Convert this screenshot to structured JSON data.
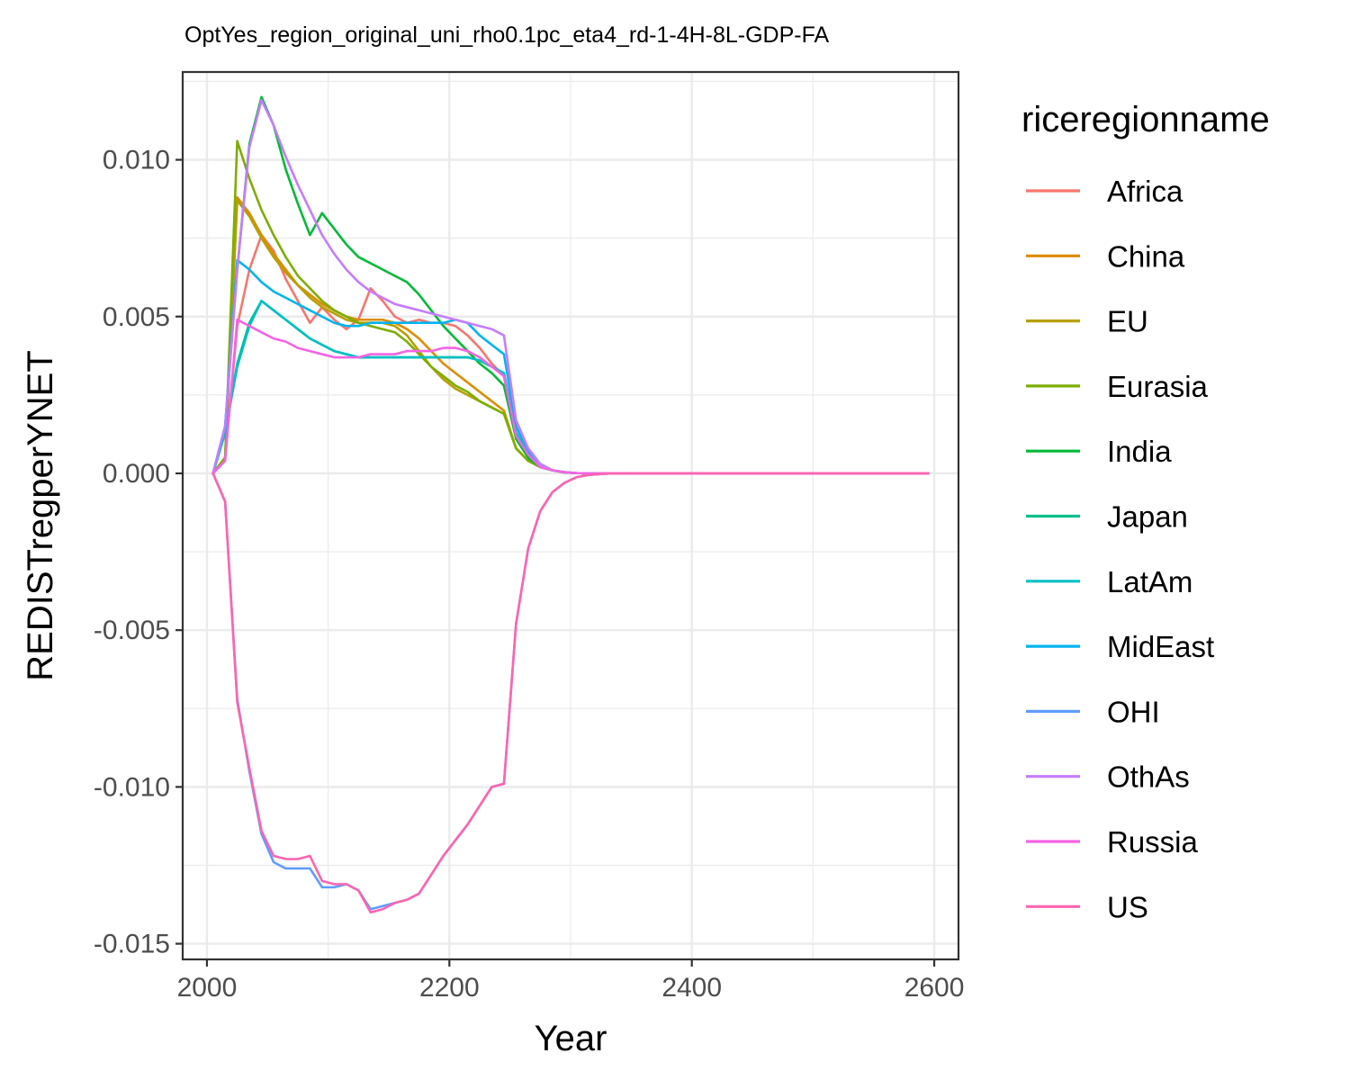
{
  "chart_data": {
    "type": "line",
    "title": "OptYes_region_original_uni_rho0.1pc_eta4_rd-1-4H-8L-GDP-FA",
    "xlabel": "Year",
    "ylabel": "REDISTregperYNET",
    "xlim": [
      1980,
      2620
    ],
    "ylim": [
      -0.0155,
      0.0128
    ],
    "x_ticks": [
      2000,
      2200,
      2400,
      2600
    ],
    "x_tick_labels": [
      "2000",
      "2200",
      "2400",
      "2600"
    ],
    "y_ticks": [
      -0.015,
      -0.01,
      -0.005,
      0.0,
      0.005,
      0.01
    ],
    "y_tick_labels": [
      "-0.015",
      "-0.010",
      "-0.005",
      "0.000",
      "0.005",
      "0.010"
    ],
    "grid": true,
    "legend": {
      "title": "riceregionname",
      "position": "right"
    },
    "series": [
      {
        "name": "Africa",
        "color": "#F8766D",
        "x": [
          2005,
          2015,
          2025,
          2035,
          2045,
          2055,
          2065,
          2075,
          2085,
          2095,
          2105,
          2115,
          2125,
          2135,
          2145,
          2155,
          2165,
          2175,
          2185,
          2195,
          2205,
          2215,
          2225,
          2235,
          2245,
          2255,
          2265,
          2275,
          2285,
          2295,
          2305,
          2315,
          2325,
          2335,
          2345,
          2595
        ],
        "y": [
          0.0,
          0.0005,
          0.0047,
          0.0065,
          0.0076,
          0.0071,
          0.0062,
          0.0055,
          0.0048,
          0.0053,
          0.0049,
          0.0046,
          0.0049,
          0.0059,
          0.0055,
          0.005,
          0.0048,
          0.0049,
          0.0048,
          0.0048,
          0.0047,
          0.0044,
          0.004,
          0.0035,
          0.0031,
          0.0012,
          0.0005,
          0.0002,
          0.0001,
          3e-05,
          1e-05,
          0.0,
          0.0,
          0.0,
          0.0,
          0.0
        ]
      },
      {
        "name": "China",
        "color": "#DE8C00",
        "x": [
          2005,
          2015,
          2025,
          2035,
          2045,
          2055,
          2065,
          2075,
          2085,
          2095,
          2105,
          2115,
          2125,
          2135,
          2145,
          2155,
          2165,
          2175,
          2185,
          2195,
          2205,
          2215,
          2225,
          2235,
          2245,
          2255,
          2265,
          2275,
          2285,
          2295,
          2305,
          2315,
          2325,
          2335,
          2345,
          2595
        ],
        "y": [
          0.0,
          0.0005,
          0.0088,
          0.0083,
          0.0076,
          0.007,
          0.0065,
          0.006,
          0.0057,
          0.0054,
          0.0052,
          0.005,
          0.0049,
          0.0049,
          0.0049,
          0.0048,
          0.0046,
          0.0043,
          0.0039,
          0.0035,
          0.0032,
          0.0029,
          0.0026,
          0.0023,
          0.002,
          0.0008,
          0.0004,
          0.0002,
          0.0001,
          3e-05,
          1e-05,
          0.0,
          0.0,
          0.0,
          0.0,
          0.0
        ]
      },
      {
        "name": "EU",
        "color": "#B79F00",
        "x": [
          2005,
          2015,
          2025,
          2035,
          2045,
          2055,
          2065,
          2075,
          2085,
          2095,
          2105,
          2115,
          2125,
          2135,
          2145,
          2155,
          2165,
          2175,
          2185,
          2195,
          2205,
          2215,
          2225,
          2235,
          2245,
          2255,
          2265,
          2275,
          2285,
          2295,
          2305,
          2315,
          2325,
          2335,
          2345,
          2595
        ],
        "y": [
          0.0,
          0.0005,
          0.0087,
          0.0082,
          0.0075,
          0.0069,
          0.0064,
          0.006,
          0.0056,
          0.0053,
          0.0051,
          0.0049,
          0.0048,
          0.0048,
          0.0048,
          0.0047,
          0.0044,
          0.0039,
          0.0034,
          0.003,
          0.0027,
          0.0025,
          0.0023,
          0.0021,
          0.0019,
          0.0008,
          0.0004,
          0.0002,
          0.0001,
          3e-05,
          1e-05,
          0.0,
          0.0,
          0.0,
          0.0,
          0.0
        ]
      },
      {
        "name": "Eurasia",
        "color": "#7CAE00",
        "x": [
          2005,
          2015,
          2025,
          2035,
          2045,
          2055,
          2065,
          2075,
          2085,
          2095,
          2105,
          2115,
          2125,
          2135,
          2145,
          2155,
          2165,
          2175,
          2185,
          2195,
          2205,
          2215,
          2225,
          2235,
          2245,
          2255,
          2265,
          2275,
          2285,
          2295,
          2305,
          2315,
          2325,
          2335,
          2345,
          2595
        ],
        "y": [
          0.0,
          0.0005,
          0.0106,
          0.0094,
          0.0084,
          0.0076,
          0.0069,
          0.0063,
          0.0059,
          0.0055,
          0.0052,
          0.005,
          0.0048,
          0.0047,
          0.0046,
          0.0045,
          0.0042,
          0.0038,
          0.0034,
          0.0031,
          0.0028,
          0.0026,
          0.0023,
          0.0021,
          0.0019,
          0.0008,
          0.0004,
          0.0002,
          0.0001,
          3e-05,
          1e-05,
          0.0,
          0.0,
          0.0,
          0.0,
          0.0
        ]
      },
      {
        "name": "India",
        "color": "#00BA38",
        "x": [
          2005,
          2015,
          2025,
          2035,
          2045,
          2055,
          2065,
          2075,
          2085,
          2095,
          2105,
          2115,
          2125,
          2135,
          2145,
          2155,
          2165,
          2175,
          2185,
          2195,
          2205,
          2215,
          2225,
          2235,
          2245,
          2255,
          2265,
          2275,
          2285,
          2295,
          2305,
          2315,
          2325,
          2335,
          2345,
          2595
        ],
        "y": [
          0.0,
          0.0015,
          0.0065,
          0.0105,
          0.012,
          0.0111,
          0.0097,
          0.0086,
          0.0076,
          0.0083,
          0.0078,
          0.0073,
          0.0069,
          0.0067,
          0.0065,
          0.0063,
          0.0061,
          0.0057,
          0.0052,
          0.0047,
          0.0043,
          0.0039,
          0.0035,
          0.0032,
          0.0028,
          0.0011,
          0.0005,
          0.0002,
          0.0001,
          3e-05,
          1e-05,
          0.0,
          0.0,
          0.0,
          0.0,
          0.0
        ]
      },
      {
        "name": "Japan",
        "color": "#00C08B",
        "x": [
          2005,
          2015,
          2025,
          2035,
          2045,
          2055,
          2065,
          2075,
          2085,
          2095,
          2105,
          2115,
          2125,
          2135,
          2145,
          2155,
          2165,
          2175,
          2185,
          2195,
          2205,
          2215,
          2225,
          2235,
          2245,
          2255,
          2265,
          2275,
          2285,
          2295,
          2305,
          2315,
          2325,
          2335,
          2345,
          2595
        ],
        "y": [
          0.0,
          0.0013,
          0.0035,
          0.0048,
          0.0055,
          0.0052,
          0.0049,
          0.0046,
          0.0043,
          0.0041,
          0.0039,
          0.0038,
          0.0037,
          0.0037,
          0.0037,
          0.0037,
          0.0037,
          0.0037,
          0.0037,
          0.0037,
          0.0037,
          0.0037,
          0.0036,
          0.0034,
          0.0032,
          0.0013,
          0.0006,
          0.0002,
          0.0001,
          3e-05,
          1e-05,
          0.0,
          0.0,
          0.0,
          0.0,
          0.0
        ]
      },
      {
        "name": "LatAm",
        "color": "#00BFC4",
        "x": [
          2005,
          2015,
          2025,
          2035,
          2045,
          2055,
          2065,
          2075,
          2085,
          2095,
          2105,
          2115,
          2125,
          2135,
          2145,
          2155,
          2165,
          2175,
          2185,
          2195,
          2205,
          2215,
          2225,
          2235,
          2245,
          2255,
          2265,
          2275,
          2285,
          2295,
          2305,
          2315,
          2325,
          2335,
          2345,
          2595
        ],
        "y": [
          0.0,
          0.0013,
          0.0034,
          0.0047,
          0.0055,
          0.0052,
          0.0049,
          0.0046,
          0.0043,
          0.0041,
          0.0039,
          0.0038,
          0.0037,
          0.0037,
          0.0037,
          0.0037,
          0.0037,
          0.0037,
          0.0037,
          0.0037,
          0.0037,
          0.0037,
          0.0036,
          0.0034,
          0.0032,
          0.0013,
          0.0006,
          0.0002,
          0.0001,
          3e-05,
          1e-05,
          0.0,
          0.0,
          0.0,
          0.0,
          0.0
        ]
      },
      {
        "name": "MidEast",
        "color": "#00B4F0",
        "x": [
          2005,
          2015,
          2025,
          2035,
          2045,
          2055,
          2065,
          2075,
          2085,
          2095,
          2105,
          2115,
          2125,
          2135,
          2145,
          2155,
          2165,
          2175,
          2185,
          2195,
          2205,
          2215,
          2225,
          2235,
          2245,
          2255,
          2265,
          2275,
          2285,
          2295,
          2305,
          2315,
          2325,
          2335,
          2345,
          2595
        ],
        "y": [
          0.0,
          0.0015,
          0.0068,
          0.0065,
          0.0061,
          0.0058,
          0.0056,
          0.0054,
          0.0052,
          0.005,
          0.0048,
          0.0047,
          0.0047,
          0.0048,
          0.0048,
          0.0048,
          0.0048,
          0.0048,
          0.0048,
          0.0048,
          0.0049,
          0.0048,
          0.0044,
          0.0041,
          0.0038,
          0.0015,
          0.0007,
          0.0003,
          0.0001,
          4e-05,
          1e-05,
          0.0,
          0.0,
          0.0,
          0.0,
          0.0
        ]
      },
      {
        "name": "OHI",
        "color": "#619CFF",
        "x": [
          2005,
          2015,
          2025,
          2035,
          2045,
          2055,
          2065,
          2075,
          2085,
          2095,
          2105,
          2115,
          2125,
          2135,
          2145,
          2155,
          2165,
          2175,
          2185,
          2195,
          2205,
          2215,
          2225,
          2235,
          2245,
          2255,
          2265,
          2275,
          2285,
          2295,
          2305,
          2315,
          2325,
          2335,
          2345,
          2595
        ],
        "y": [
          0.0,
          -0.0009,
          -0.0072,
          -0.0095,
          -0.0115,
          -0.0124,
          -0.0126,
          -0.0126,
          -0.0126,
          -0.0132,
          -0.0132,
          -0.0131,
          -0.0133,
          -0.0139,
          -0.0138,
          -0.0137,
          -0.0136,
          -0.0134,
          -0.0128,
          -0.0122,
          -0.0117,
          -0.0112,
          -0.0106,
          -0.01,
          -0.0099,
          -0.0048,
          -0.0024,
          -0.0012,
          -0.0006,
          -0.0003,
          -0.00012,
          -5e-05,
          -2e-05,
          0.0,
          0.0,
          0.0
        ]
      },
      {
        "name": "OthAs",
        "color": "#C77CFF",
        "x": [
          2005,
          2015,
          2025,
          2035,
          2045,
          2055,
          2065,
          2075,
          2085,
          2095,
          2105,
          2115,
          2125,
          2135,
          2145,
          2155,
          2165,
          2175,
          2185,
          2195,
          2205,
          2215,
          2225,
          2235,
          2245,
          2255,
          2265,
          2275,
          2285,
          2295,
          2305,
          2315,
          2325,
          2335,
          2345,
          2595
        ],
        "y": [
          0.0,
          0.0015,
          0.0065,
          0.0104,
          0.0119,
          0.0111,
          0.0101,
          0.0092,
          0.0084,
          0.0076,
          0.007,
          0.0065,
          0.0061,
          0.0058,
          0.0056,
          0.0054,
          0.0053,
          0.0052,
          0.0051,
          0.005,
          0.0049,
          0.0048,
          0.0047,
          0.0046,
          0.0044,
          0.0017,
          0.0008,
          0.0003,
          0.0001,
          4e-05,
          1e-05,
          0.0,
          0.0,
          0.0,
          0.0,
          0.0
        ]
      },
      {
        "name": "Russia",
        "color": "#F564E3",
        "x": [
          2005,
          2015,
          2025,
          2035,
          2045,
          2055,
          2065,
          2075,
          2085,
          2095,
          2105,
          2115,
          2125,
          2135,
          2145,
          2155,
          2165,
          2175,
          2185,
          2195,
          2205,
          2215,
          2225,
          2235,
          2245,
          2255,
          2265,
          2275,
          2285,
          2295,
          2305,
          2315,
          2325,
          2335,
          2345,
          2595
        ],
        "y": [
          0.0,
          0.0004,
          0.0049,
          0.0047,
          0.0045,
          0.0043,
          0.0042,
          0.004,
          0.0039,
          0.0038,
          0.0037,
          0.0037,
          0.0037,
          0.0038,
          0.0038,
          0.0038,
          0.0039,
          0.0039,
          0.0039,
          0.004,
          0.004,
          0.0039,
          0.0037,
          0.0034,
          0.0031,
          0.0012,
          0.0006,
          0.0002,
          0.0001,
          3e-05,
          1e-05,
          0.0,
          0.0,
          0.0,
          0.0,
          0.0
        ]
      },
      {
        "name": "US",
        "color": "#FF64B0",
        "x": [
          2005,
          2015,
          2025,
          2035,
          2045,
          2055,
          2065,
          2075,
          2085,
          2095,
          2105,
          2115,
          2125,
          2135,
          2145,
          2155,
          2165,
          2175,
          2185,
          2195,
          2205,
          2215,
          2225,
          2235,
          2245,
          2255,
          2265,
          2275,
          2285,
          2295,
          2305,
          2315,
          2325,
          2335,
          2345,
          2595
        ],
        "y": [
          0.0,
          -0.0009,
          -0.0073,
          -0.0094,
          -0.0114,
          -0.0122,
          -0.0123,
          -0.0123,
          -0.0122,
          -0.013,
          -0.0131,
          -0.0131,
          -0.0133,
          -0.014,
          -0.0139,
          -0.0137,
          -0.0136,
          -0.0134,
          -0.0128,
          -0.0122,
          -0.0117,
          -0.0112,
          -0.0106,
          -0.01,
          -0.0099,
          -0.0048,
          -0.0024,
          -0.0012,
          -0.0006,
          -0.0003,
          -0.00012,
          -5e-05,
          -2e-05,
          0.0,
          0.0,
          0.0
        ]
      }
    ]
  }
}
